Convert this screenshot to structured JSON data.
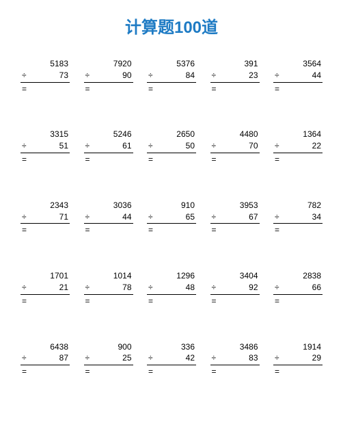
{
  "title": "计算题100道",
  "operator": "÷",
  "equals": "=",
  "style": {
    "title_color": "#1e7bc4",
    "title_fontsize": 24,
    "cell_fontsize": 12,
    "text_color": "#000000",
    "background_color": "#ffffff",
    "columns": 5,
    "rows": 5,
    "problem_width": 72,
    "row_gap": 50
  },
  "problems": [
    [
      {
        "dividend": 5183,
        "divisor": 73
      },
      {
        "dividend": 7920,
        "divisor": 90
      },
      {
        "dividend": 5376,
        "divisor": 84
      },
      {
        "dividend": 391,
        "divisor": 23
      },
      {
        "dividend": 3564,
        "divisor": 44
      }
    ],
    [
      {
        "dividend": 3315,
        "divisor": 51
      },
      {
        "dividend": 5246,
        "divisor": 61
      },
      {
        "dividend": 2650,
        "divisor": 50
      },
      {
        "dividend": 4480,
        "divisor": 70
      },
      {
        "dividend": 1364,
        "divisor": 22
      }
    ],
    [
      {
        "dividend": 2343,
        "divisor": 71
      },
      {
        "dividend": 3036,
        "divisor": 44
      },
      {
        "dividend": 910,
        "divisor": 65
      },
      {
        "dividend": 3953,
        "divisor": 67
      },
      {
        "dividend": 782,
        "divisor": 34
      }
    ],
    [
      {
        "dividend": 1701,
        "divisor": 21
      },
      {
        "dividend": 1014,
        "divisor": 78
      },
      {
        "dividend": 1296,
        "divisor": 48
      },
      {
        "dividend": 3404,
        "divisor": 92
      },
      {
        "dividend": 2838,
        "divisor": 66
      }
    ],
    [
      {
        "dividend": 6438,
        "divisor": 87
      },
      {
        "dividend": 900,
        "divisor": 25
      },
      {
        "dividend": 336,
        "divisor": 42
      },
      {
        "dividend": 3486,
        "divisor": 83
      },
      {
        "dividend": 1914,
        "divisor": 29
      }
    ]
  ]
}
